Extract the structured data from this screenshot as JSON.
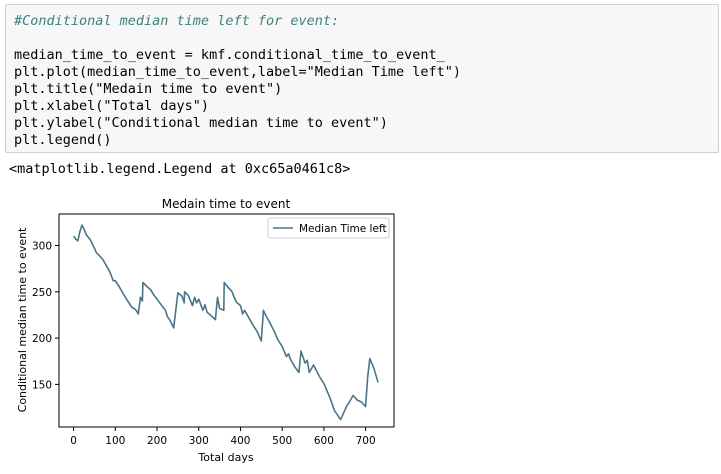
{
  "code_cell": {
    "comment": "#Conditional median time left for event:",
    "lines": [
      "median_time_to_event = kmf.conditional_time_to_event_",
      "plt.plot(median_time_to_event,label=\"Median Time left\")",
      "plt.title(\"Medain time to event\")",
      "plt.xlabel(\"Total days\")",
      "plt.ylabel(\"Conditional median time to event\")",
      "plt.legend()"
    ]
  },
  "output_text": "<matplotlib.legend.Legend at 0xc65a0461c8>",
  "chart_data": {
    "type": "line",
    "title": "Medain time to event",
    "xlabel": "Total days",
    "ylabel": "Conditional median time to event",
    "xlim": [
      -35,
      768
    ],
    "ylim": [
      104,
      334
    ],
    "xticks": [
      0,
      100,
      200,
      300,
      400,
      500,
      600,
      700
    ],
    "yticks": [
      150,
      200,
      250,
      300
    ],
    "legend": {
      "label": "Median Time left",
      "placement": "upper right"
    },
    "line_color": "#4a7586",
    "series": [
      {
        "name": "Median Time left",
        "x": [
          0,
          5,
          10,
          15,
          20,
          25,
          30,
          40,
          50,
          55,
          60,
          70,
          80,
          85,
          90,
          95,
          100,
          110,
          120,
          130,
          140,
          145,
          150,
          155,
          160,
          165,
          166,
          175,
          185,
          190,
          200,
          210,
          220,
          225,
          230,
          240,
          250,
          260,
          265,
          266,
          275,
          285,
          290,
          295,
          300,
          305,
          310,
          315,
          320,
          325,
          330,
          340,
          345,
          350,
          360,
          361,
          370,
          380,
          385,
          390,
          400,
          405,
          410,
          420,
          430,
          440,
          450,
          455,
          460,
          470,
          480,
          490,
          500,
          510,
          515,
          520,
          530,
          540,
          545,
          555,
          560,
          565,
          575,
          590,
          600,
          615,
          625,
          640,
          655,
          660,
          670,
          680,
          690,
          700,
          705,
          710,
          720,
          730
        ],
        "y": [
          310,
          307,
          305,
          315,
          322,
          318,
          312,
          306,
          297,
          292,
          290,
          285,
          277,
          273,
          268,
          262,
          262,
          255,
          247,
          240,
          233,
          232,
          230,
          226,
          244,
          240,
          260,
          256,
          252,
          248,
          242,
          236,
          230,
          223,
          220,
          211,
          249,
          245,
          238,
          250,
          246,
          235,
          244,
          238,
          242,
          236,
          230,
          236,
          228,
          226,
          224,
          220,
          244,
          232,
          230,
          260,
          255,
          250,
          244,
          239,
          235,
          226,
          230,
          222,
          214,
          207,
          197,
          230,
          225,
          217,
          208,
          198,
          191,
          180,
          183,
          177,
          169,
          163,
          186,
          173,
          176,
          163,
          171,
          158,
          151,
          135,
          122,
          112,
          127,
          130,
          138,
          133,
          131,
          126,
          158,
          178,
          167,
          152
        ]
      }
    ]
  }
}
